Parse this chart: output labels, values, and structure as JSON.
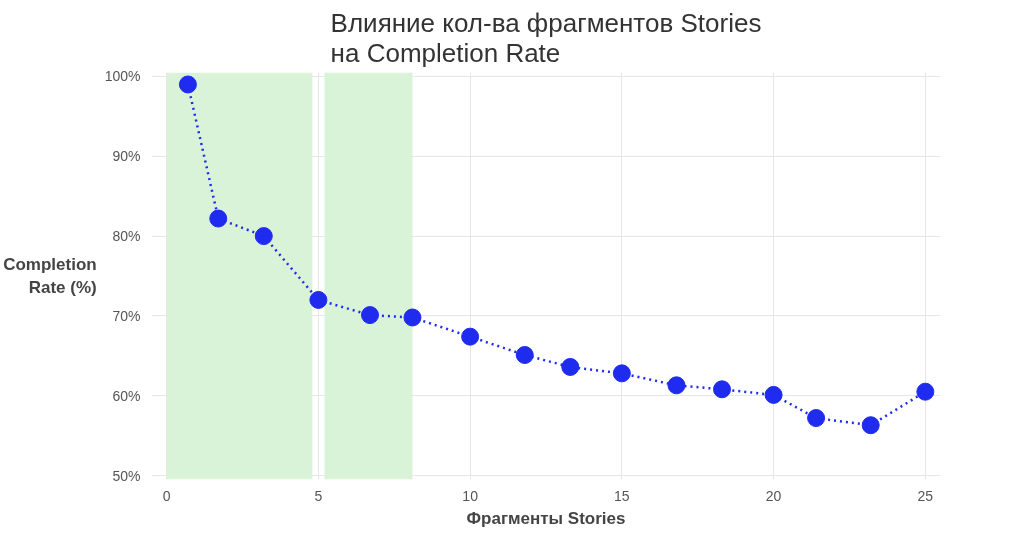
{
  "chart_data": {
    "type": "line",
    "title": "Влияние кол-ва фрагментов Stories\nна Completion Rate",
    "xlabel": "Фрагменты Stories",
    "ylabel": "Completion\nRate (%)",
    "x": [
      0.7,
      1.7,
      3.2,
      5,
      6.7,
      8.1,
      10,
      11.8,
      13.3,
      15,
      16.8,
      18.3,
      20,
      21.4,
      23.2,
      25
    ],
    "series": [
      {
        "color": "#1f2bef",
        "values": [
          99,
          82.2,
          80,
          72,
          70.1,
          69.8,
          67.4,
          65.1,
          63.6,
          62.8,
          61.3,
          60.8,
          60.1,
          57.2,
          56.3,
          60.5
        ]
      }
    ],
    "marker": "circle",
    "line_style": "dotted",
    "grid": true,
    "xlim": [
      -0.5,
      25.5
    ],
    "ylim": [
      49.5,
      100.5
    ],
    "xticks": [
      0,
      5,
      10,
      15,
      20,
      25
    ],
    "yticks": [
      {
        "value": 50,
        "label": "50%"
      },
      {
        "value": 60,
        "label": "60%"
      },
      {
        "value": 70,
        "label": "70%"
      },
      {
        "value": 80,
        "label": "80%"
      },
      {
        "value": 90,
        "label": "90%"
      },
      {
        "value": 100,
        "label": "100%"
      }
    ],
    "bands": [
      {
        "axis": "x",
        "from": 0,
        "to": 4.8,
        "color": "#d8f3d8"
      },
      {
        "axis": "x",
        "from": 5.2,
        "to": 8.1,
        "color": "#d8f3d8"
      }
    ]
  }
}
